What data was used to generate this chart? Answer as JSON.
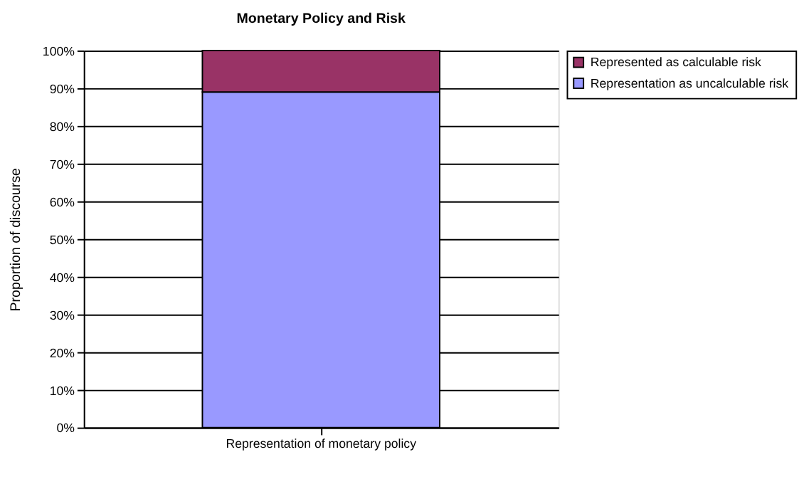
{
  "chart_data": {
    "type": "bar",
    "title": "Monetary Policy and Risk",
    "ylabel": "Proportion of discourse",
    "categories": [
      "Representation of monetary policy"
    ],
    "stacked": true,
    "series": [
      {
        "name": "Representation as uncalculable risk",
        "color": "#9999ff",
        "values": [
          89
        ]
      },
      {
        "name": "Represented as calculable risk",
        "color": "#993366",
        "values": [
          11
        ]
      }
    ],
    "ylim": [
      0,
      100
    ],
    "yticks": [
      {
        "value": 0,
        "label": "0%"
      },
      {
        "value": 10,
        "label": "10%"
      },
      {
        "value": 20,
        "label": "20%"
      },
      {
        "value": 30,
        "label": "30%"
      },
      {
        "value": 40,
        "label": "40%"
      },
      {
        "value": 50,
        "label": "50%"
      },
      {
        "value": 60,
        "label": "60%"
      },
      {
        "value": 70,
        "label": "70%"
      },
      {
        "value": 80,
        "label": "80%"
      },
      {
        "value": 90,
        "label": "90%"
      },
      {
        "value": 100,
        "label": "100%"
      }
    ],
    "grid": "y",
    "legend": "right"
  }
}
